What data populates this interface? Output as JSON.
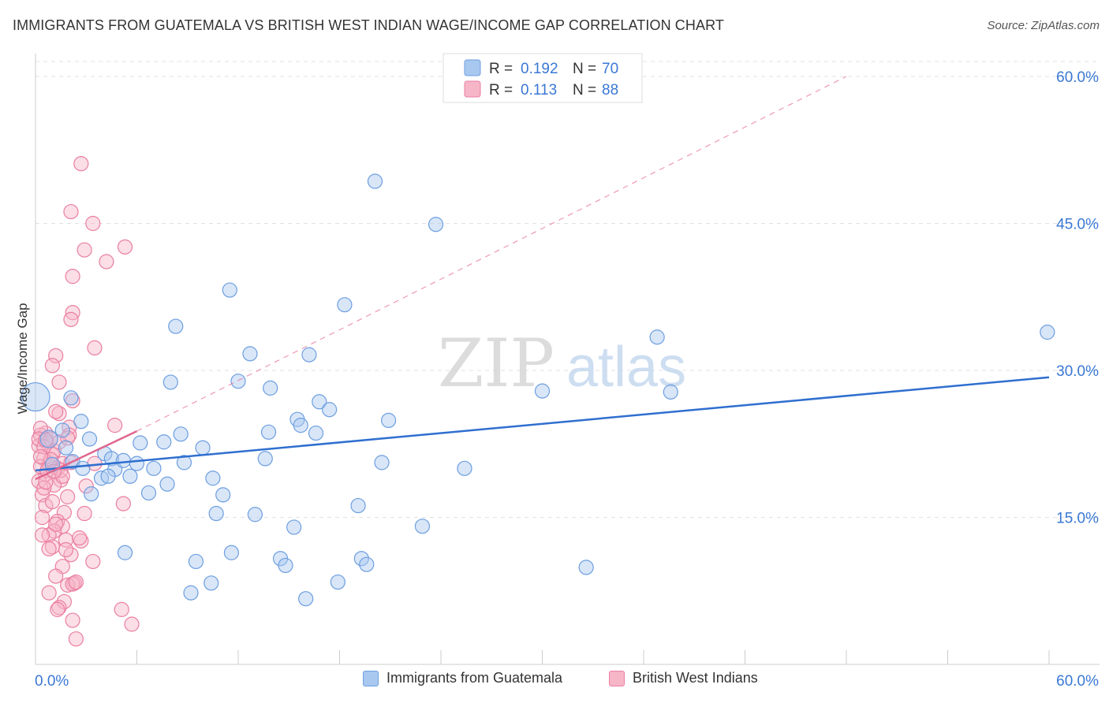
{
  "header": {
    "title": "IMMIGRANTS FROM GUATEMALA VS BRITISH WEST INDIAN WAGE/INCOME GAP CORRELATION CHART",
    "source": "Source: ZipAtlas.com"
  },
  "watermark": {
    "zip": "ZIP",
    "atlas": "atlas"
  },
  "chart_data": {
    "type": "scatter",
    "title": "IMMIGRANTS FROM GUATEMALA VS BRITISH WEST INDIAN WAGE/INCOME GAP CORRELATION CHART",
    "xlabel": "",
    "ylabel": "Wage/Income Gap",
    "xlim": [
      0,
      60
    ],
    "ylim": [
      0,
      60
    ],
    "x_tick_labels": [
      "0.0%",
      "60.0%"
    ],
    "y_tick_labels": [
      "15.0%",
      "30.0%",
      "45.0%",
      "60.0%"
    ],
    "y_ticks": [
      15,
      30,
      45,
      60
    ],
    "grid": true,
    "colors": {
      "blue_fill": "#a9c8f0",
      "blue_stroke": "#6d9ee0",
      "blue_line": "#2f6fcf",
      "pink_fill": "#f6b6c8",
      "pink_stroke": "#ea7fa1",
      "pink_line": "#e0668f",
      "label_blue": "#3a78d4"
    },
    "legend": {
      "position": "top-center",
      "entries": [
        {
          "r_label": "R = ",
          "r_value": "0.192",
          "n_label": "N = ",
          "n_value": "70"
        },
        {
          "r_label": "R = ",
          "r_value": "0.113",
          "n_label": "N = ",
          "n_value": "88"
        }
      ]
    },
    "series": [
      {
        "name": "Immigrants from Guatemala",
        "color": "blue",
        "trend": {
          "x": [
            0,
            60
          ],
          "y": [
            19.8,
            29.3
          ]
        },
        "points": [
          [
            0.0,
            27.3,
            18
          ],
          [
            0.8,
            23.0,
            11
          ],
          [
            1.0,
            20.4,
            9
          ],
          [
            1.6,
            23.9,
            9
          ],
          [
            2.1,
            27.2,
            9
          ],
          [
            1.8,
            22.1,
            9
          ],
          [
            2.2,
            20.7,
            9
          ],
          [
            2.8,
            20.0,
            9
          ],
          [
            3.2,
            23.0,
            9
          ],
          [
            4.1,
            21.5,
            9
          ],
          [
            4.5,
            21.0,
            9
          ],
          [
            4.7,
            19.9,
            9
          ],
          [
            3.3,
            17.4,
            9
          ],
          [
            3.9,
            19.0,
            9
          ],
          [
            5.2,
            20.8,
            9
          ],
          [
            6.2,
            22.6,
            9
          ],
          [
            5.6,
            19.2,
            9
          ],
          [
            6.7,
            17.5,
            9
          ],
          [
            7.6,
            22.7,
            9
          ],
          [
            7.8,
            18.4,
            9
          ],
          [
            8.0,
            28.8,
            9
          ],
          [
            8.3,
            34.5,
            9
          ],
          [
            8.8,
            20.6,
            9
          ],
          [
            9.9,
            22.1,
            9
          ],
          [
            10.5,
            19.0,
            9
          ],
          [
            10.7,
            15.4,
            9
          ],
          [
            11.1,
            17.3,
            9
          ],
          [
            11.5,
            38.2,
            9
          ],
          [
            11.6,
            11.4,
            9
          ],
          [
            12.0,
            28.9,
            9
          ],
          [
            12.7,
            31.7,
            9
          ],
          [
            13.0,
            15.3,
            9
          ],
          [
            13.6,
            21.0,
            9
          ],
          [
            13.8,
            23.7,
            9
          ],
          [
            13.9,
            28.2,
            9
          ],
          [
            14.5,
            10.8,
            9
          ],
          [
            14.8,
            10.1,
            9
          ],
          [
            15.3,
            14.0,
            9
          ],
          [
            15.5,
            25.0,
            9
          ],
          [
            15.7,
            24.4,
            9
          ],
          [
            16.0,
            6.7,
            9
          ],
          [
            16.2,
            31.6,
            9
          ],
          [
            16.6,
            23.6,
            9
          ],
          [
            16.8,
            26.8,
            9
          ],
          [
            17.4,
            26.0,
            9
          ],
          [
            17.9,
            8.4,
            9
          ],
          [
            18.3,
            36.7,
            9
          ],
          [
            19.1,
            16.2,
            9
          ],
          [
            19.3,
            10.8,
            9
          ],
          [
            19.6,
            10.2,
            9
          ],
          [
            20.1,
            49.3,
            9
          ],
          [
            20.5,
            20.6,
            9
          ],
          [
            20.9,
            24.9,
            9
          ],
          [
            22.9,
            14.1,
            9
          ],
          [
            23.7,
            44.9,
            9
          ],
          [
            25.4,
            20.0,
            9
          ],
          [
            30.0,
            27.9,
            9
          ],
          [
            32.6,
            9.9,
            9
          ],
          [
            36.8,
            33.4,
            9
          ],
          [
            37.6,
            27.8,
            9
          ],
          [
            59.9,
            33.9,
            9
          ],
          [
            7.0,
            20.0,
            9
          ],
          [
            2.7,
            24.8,
            9
          ],
          [
            4.3,
            19.2,
            9
          ],
          [
            10.4,
            8.3,
            9
          ],
          [
            5.3,
            11.4,
            9
          ],
          [
            9.2,
            7.3,
            9
          ],
          [
            9.5,
            10.5,
            9
          ],
          [
            8.6,
            23.5,
            9
          ],
          [
            6.0,
            20.5,
            9
          ]
        ]
      },
      {
        "name": "British West Indians",
        "color": "pink",
        "trend": {
          "x": [
            0,
            6
          ],
          "y": [
            18.9,
            23.8
          ]
        },
        "trend_dashed": {
          "x": [
            6,
            48
          ],
          "y": [
            23.8,
            60
          ]
        },
        "points": [
          [
            2.7,
            51.1,
            9
          ],
          [
            3.4,
            45.0,
            9
          ],
          [
            5.3,
            42.6,
            9
          ],
          [
            2.1,
            46.2,
            9
          ],
          [
            2.9,
            42.3,
            9
          ],
          [
            4.2,
            41.1,
            9
          ],
          [
            2.2,
            39.6,
            9
          ],
          [
            2.2,
            35.9,
            9
          ],
          [
            2.1,
            35.2,
            9
          ],
          [
            3.5,
            32.3,
            9
          ],
          [
            1.2,
            31.5,
            9
          ],
          [
            1.0,
            30.5,
            9
          ],
          [
            1.4,
            28.8,
            9
          ],
          [
            2.2,
            26.9,
            9
          ],
          [
            1.4,
            25.6,
            9
          ],
          [
            0.6,
            23.6,
            9
          ],
          [
            2.0,
            24.2,
            9
          ],
          [
            0.3,
            23.4,
            9
          ],
          [
            0.7,
            22.6,
            9
          ],
          [
            0.2,
            22.3,
            9
          ],
          [
            1.0,
            21.4,
            9
          ],
          [
            0.5,
            21.0,
            9
          ],
          [
            1.6,
            20.5,
            9
          ],
          [
            0.8,
            20.4,
            9
          ],
          [
            1.3,
            20.0,
            9
          ],
          [
            0.6,
            19.4,
            9
          ],
          [
            1.5,
            18.8,
            9
          ],
          [
            0.2,
            18.7,
            9
          ],
          [
            1.1,
            18.3,
            9
          ],
          [
            0.4,
            17.3,
            9
          ],
          [
            1.9,
            17.1,
            9
          ],
          [
            0.6,
            16.2,
            9
          ],
          [
            1.7,
            15.5,
            9
          ],
          [
            2.9,
            15.4,
            9
          ],
          [
            0.4,
            15.0,
            9
          ],
          [
            1.3,
            14.6,
            9
          ],
          [
            1.6,
            14.1,
            9
          ],
          [
            1.1,
            13.6,
            9
          ],
          [
            0.8,
            13.2,
            9
          ],
          [
            1.8,
            12.7,
            9
          ],
          [
            2.7,
            12.6,
            9
          ],
          [
            1.0,
            12.0,
            9
          ],
          [
            2.1,
            11.2,
            9
          ],
          [
            1.6,
            10.0,
            9
          ],
          [
            3.4,
            10.5,
            9
          ],
          [
            1.2,
            9.0,
            9
          ],
          [
            2.3,
            8.3,
            9
          ],
          [
            1.9,
            8.1,
            9
          ],
          [
            0.8,
            7.3,
            9
          ],
          [
            1.7,
            6.4,
            9
          ],
          [
            1.4,
            5.8,
            9
          ],
          [
            5.1,
            5.6,
            9
          ],
          [
            2.2,
            4.5,
            9
          ],
          [
            5.7,
            4.1,
            9
          ],
          [
            2.4,
            2.6,
            9
          ],
          [
            5.2,
            16.4,
            9
          ],
          [
            3.5,
            20.5,
            9
          ],
          [
            4.7,
            24.4,
            9
          ],
          [
            0.3,
            20.2,
            9
          ],
          [
            0.9,
            23.0,
            9
          ],
          [
            1.2,
            25.8,
            9
          ],
          [
            2.0,
            23.4,
            9
          ],
          [
            0.5,
            18.0,
            9
          ],
          [
            1.5,
            19.8,
            9
          ],
          [
            0.3,
            24.1,
            9
          ],
          [
            1.1,
            21.8,
            9
          ],
          [
            0.7,
            19.8,
            9
          ],
          [
            1.4,
            22.7,
            9
          ],
          [
            0.9,
            20.9,
            9
          ],
          [
            0.2,
            23.0,
            9
          ],
          [
            0.6,
            18.6,
            9
          ],
          [
            2.6,
            12.9,
            9
          ],
          [
            1.2,
            14.3,
            9
          ],
          [
            0.4,
            13.2,
            9
          ],
          [
            2.2,
            8.2,
            9
          ],
          [
            1.8,
            11.7,
            9
          ],
          [
            3.0,
            18.2,
            9
          ],
          [
            2.1,
            20.6,
            9
          ],
          [
            1.0,
            16.6,
            9
          ],
          [
            0.5,
            22.2,
            9
          ],
          [
            1.3,
            5.6,
            9
          ],
          [
            2.4,
            8.4,
            9
          ],
          [
            0.8,
            11.8,
            9
          ],
          [
            1.6,
            19.2,
            9
          ],
          [
            0.3,
            21.2,
            9
          ],
          [
            1.1,
            19.7,
            9
          ],
          [
            0.6,
            22.9,
            9
          ],
          [
            1.9,
            23.1,
            9
          ]
        ]
      }
    ]
  }
}
